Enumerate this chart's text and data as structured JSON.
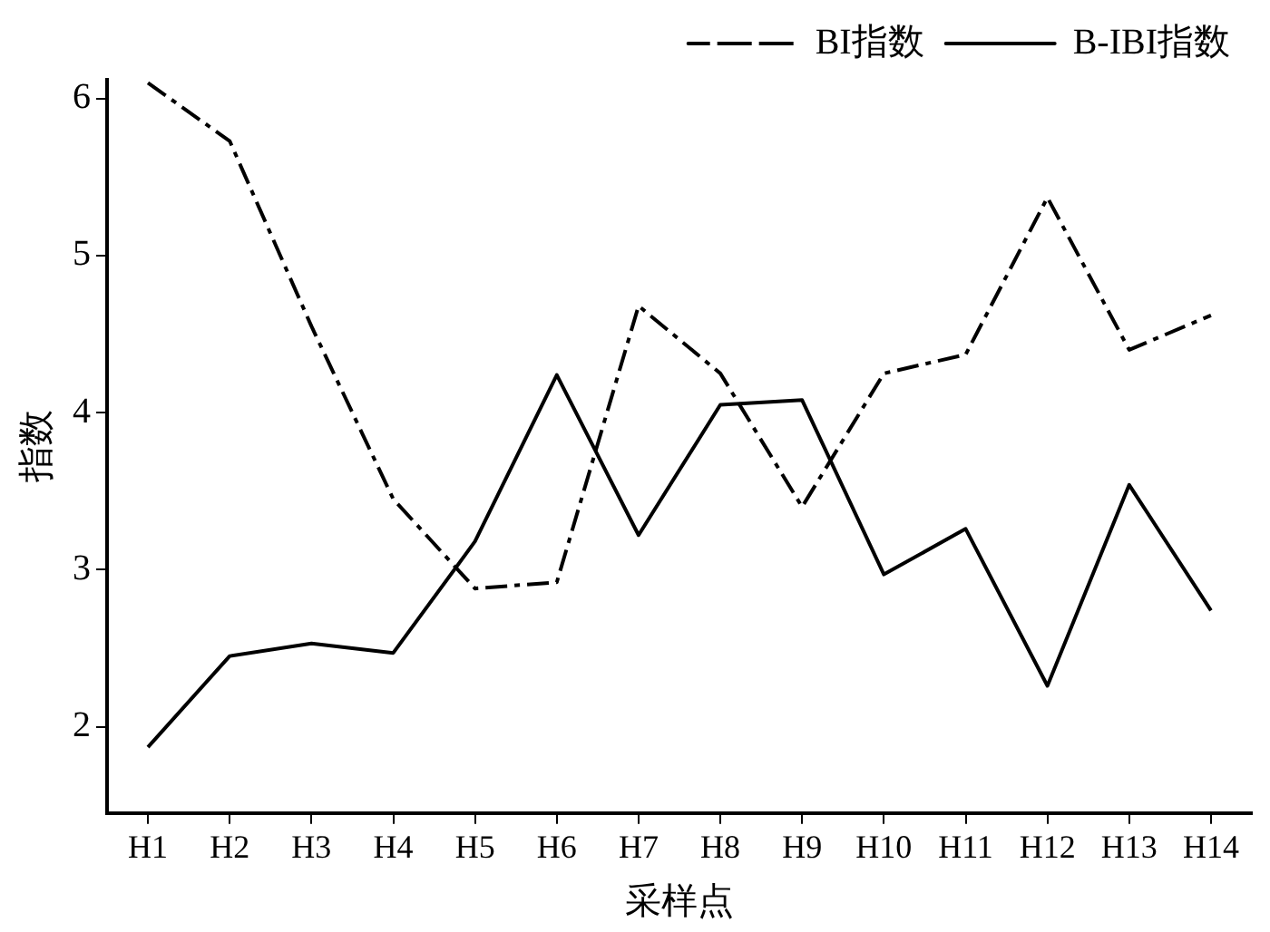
{
  "chart_data": {
    "type": "line",
    "xlabel": "采样点",
    "ylabel": "指数",
    "categories": [
      "H1",
      "H2",
      "H3",
      "H4",
      "H5",
      "H6",
      "H7",
      "H8",
      "H9",
      "H10",
      "H11",
      "H12",
      "H13",
      "H14"
    ],
    "series": [
      {
        "name": "BI指数",
        "color": "#000000",
        "line_style": "dashed",
        "values": [
          6.1,
          5.73,
          4.55,
          3.45,
          2.88,
          2.92,
          4.68,
          4.25,
          3.4,
          4.25,
          4.37,
          5.37,
          4.4,
          4.62
        ]
      },
      {
        "name": "B-IBI指数",
        "color": "#000000",
        "line_style": "solid",
        "values": [
          1.87,
          2.45,
          2.53,
          2.47,
          3.18,
          4.24,
          3.22,
          4.05,
          4.08,
          2.97,
          3.26,
          2.26,
          3.54,
          2.74
        ]
      }
    ],
    "ylim": [
      1.45,
      6.12
    ],
    "yticks": [
      2,
      3,
      4,
      5,
      6
    ],
    "grid": false,
    "legend": "top right",
    "marker": "none"
  }
}
